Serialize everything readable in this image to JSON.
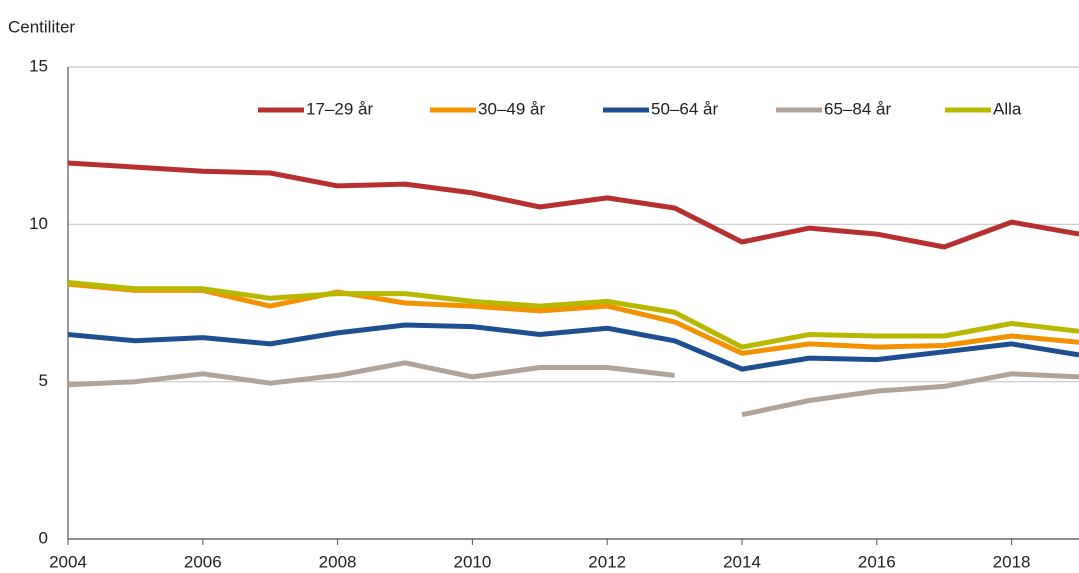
{
  "chart_data": {
    "type": "line",
    "y_label": "Centiliter",
    "x": [
      2004,
      2005,
      2006,
      2007,
      2008,
      2009,
      2010,
      2011,
      2012,
      2013,
      2014,
      2015,
      2016,
      2017,
      2018,
      2019
    ],
    "xlim": [
      2004,
      2019
    ],
    "xticks": [
      2004,
      2006,
      2008,
      2010,
      2012,
      2014,
      2016,
      2018
    ],
    "ylim": [
      0,
      15
    ],
    "yticks": [
      0,
      5,
      10,
      15
    ],
    "grid": true,
    "legend": "top",
    "series": [
      {
        "name": "17–29 år",
        "color": "#b5302f",
        "values": [
          11.95,
          11.82,
          11.69,
          11.63,
          11.22,
          11.28,
          11.0,
          10.55,
          10.84,
          10.52,
          9.44,
          9.88,
          9.69,
          9.28,
          10.07,
          9.69
        ]
      },
      {
        "name": "30–49 år",
        "color": "#f39200",
        "values": [
          8.1,
          7.9,
          7.9,
          7.4,
          7.85,
          7.5,
          7.4,
          7.25,
          7.4,
          6.9,
          5.9,
          6.2,
          6.1,
          6.15,
          6.45,
          6.25
        ]
      },
      {
        "name": "50–64 år",
        "color": "#1d4f91",
        "values": [
          6.5,
          6.3,
          6.4,
          6.2,
          6.55,
          6.8,
          6.75,
          6.5,
          6.7,
          6.3,
          5.4,
          5.75,
          5.7,
          5.95,
          6.2,
          5.85
        ]
      },
      {
        "name": "65–84 år",
        "color": "#b0a49a",
        "x": [
          2004,
          2005,
          2006,
          2007,
          2008,
          2009,
          2010,
          2011,
          2012,
          2013,
          null,
          2014,
          2015,
          2016,
          2017,
          2018,
          2019
        ],
        "values": [
          4.9,
          5.0,
          5.25,
          4.95,
          5.2,
          5.6,
          5.15,
          5.45,
          5.45,
          5.2,
          null,
          3.95,
          4.4,
          4.7,
          4.85,
          5.25,
          5.15
        ]
      },
      {
        "name": "Alla",
        "color": "#b8b800",
        "values": [
          8.15,
          7.95,
          7.95,
          7.65,
          7.8,
          7.8,
          7.55,
          7.4,
          7.55,
          7.2,
          6.1,
          6.5,
          6.45,
          6.45,
          6.85,
          6.6
        ]
      }
    ]
  }
}
